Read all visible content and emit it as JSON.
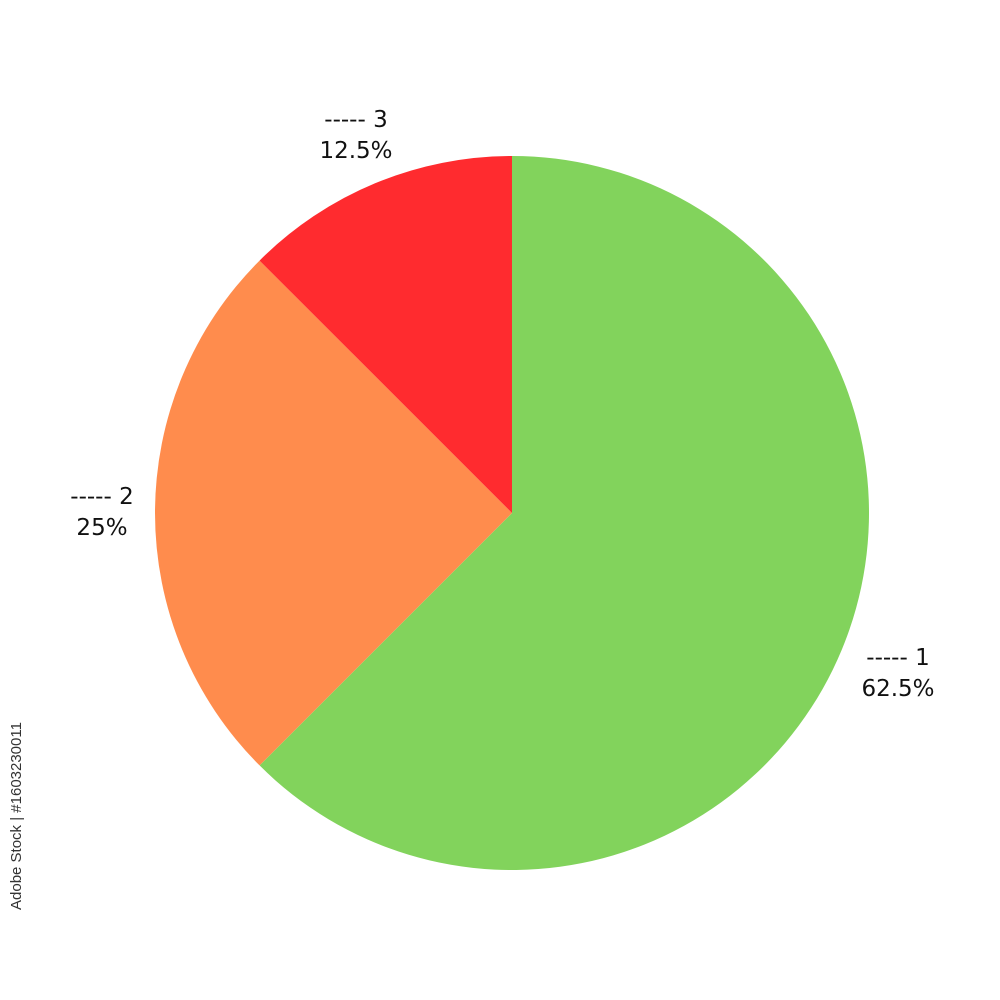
{
  "chart_data": {
    "type": "pie",
    "start_angle": "top",
    "direction": "clockwise",
    "slices": [
      {
        "label": "----- 1",
        "value": 62.5,
        "value_label": "62.5%",
        "color": "#82D35C"
      },
      {
        "label": "----- 2",
        "value": 25,
        "value_label": "25%",
        "color": "#FF8C4D"
      },
      {
        "label": "----- 3",
        "value": 12.5,
        "value_label": "12.5%",
        "color": "#FF2B2F"
      }
    ]
  },
  "watermark": "Adobe Stock | #1603230011"
}
